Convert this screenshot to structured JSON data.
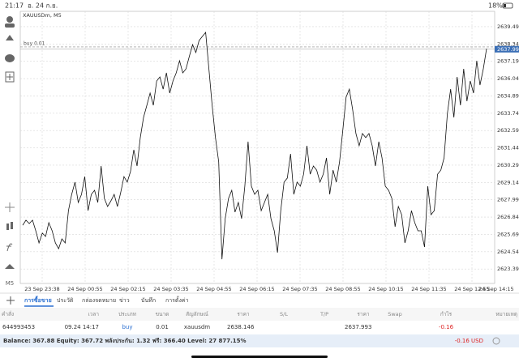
{
  "status_bar": {
    "time": "21:17",
    "date": "อ. 24 ก.ย.",
    "battery": "18%"
  },
  "chart": {
    "type": "line",
    "title": "XAUUSDm, M5",
    "color": "#111111",
    "order_line": {
      "label": "buy 0.01",
      "value": 2638.146
    },
    "current_price": 2637.993,
    "ylim": [
      2622.43,
      2640.51
    ],
    "yticks": [
      {
        "value": 2623.39,
        "label": "2623.390"
      },
      {
        "value": 2624.54,
        "label": "2624.540"
      },
      {
        "value": 2625.69,
        "label": "2625.690"
      },
      {
        "value": 2626.84,
        "label": "2626.840"
      },
      {
        "value": 2627.99,
        "label": "2627.990"
      },
      {
        "value": 2629.14,
        "label": "2629.140"
      },
      {
        "value": 2630.29,
        "label": "2630.290"
      },
      {
        "value": 2631.44,
        "label": "2631.440"
      },
      {
        "value": 2632.59,
        "label": "2632.590"
      },
      {
        "value": 2633.74,
        "label": "2633.740"
      },
      {
        "value": 2634.89,
        "label": "2634.890"
      },
      {
        "value": 2636.04,
        "label": "2636.040"
      },
      {
        "value": 2637.19,
        "label": "2637.190"
      },
      {
        "value": 2638.34,
        "label": "2638.340"
      },
      {
        "value": 2639.49,
        "label": "2639.490"
      }
    ],
    "categories": [
      "23 Sep 23:38",
      "24 Sep 00:55",
      "24 Sep 02:15",
      "24 Sep 03:35",
      "24 Sep 04:55",
      "24 Sep 06:15",
      "24 Sep 07:35",
      "24 Sep 08:55",
      "24 Sep 10:15",
      "24 Sep 11:35",
      "24 Sep 12:55",
      "24 Sep 14:15"
    ],
    "values": [
      2626.3,
      2626.63,
      2626.41,
      2626.63,
      2625.93,
      2625.12,
      2625.77,
      2625.55,
      2626.47,
      2625.93,
      2625.12,
      2624.74,
      2625.39,
      2625.12,
      2627.27,
      2628.35,
      2629.16,
      2627.81,
      2628.35,
      2629.53,
      2627.27,
      2628.35,
      2628.62,
      2627.81,
      2630.23,
      2628.08,
      2627.54,
      2627.92,
      2628.35,
      2627.54,
      2628.46,
      2629.53,
      2629.16,
      2629.86,
      2631.31,
      2630.23,
      2632.12,
      2633.46,
      2634.27,
      2635.08,
      2634.27,
      2635.88,
      2636.15,
      2635.34,
      2636.42,
      2635.08,
      2635.88,
      2636.42,
      2637.23,
      2636.42,
      2636.69,
      2637.5,
      2638.3,
      2637.77,
      2638.57,
      2638.84,
      2639.11,
      2636.69,
      2634.27,
      2632.12,
      2630.5,
      2624.04,
      2626.74,
      2628.08,
      2628.62,
      2627.17,
      2627.81,
      2626.74,
      2628.89,
      2631.85,
      2628.89,
      2628.35,
      2628.62,
      2627.27,
      2627.81,
      2628.35,
      2626.74,
      2625.93,
      2624.48,
      2627.27,
      2629.16,
      2629.43,
      2631.04,
      2628.35,
      2629.16,
      2628.89,
      2629.69,
      2631.58,
      2629.69,
      2630.23,
      2629.96,
      2629.16,
      2629.69,
      2630.77,
      2628.35,
      2629.96,
      2629.16,
      2630.5,
      2632.65,
      2634.81,
      2635.34,
      2634.0,
      2632.39,
      2631.58,
      2632.39,
      2632.12,
      2632.39,
      2631.58,
      2630.23,
      2631.85,
      2630.77,
      2628.89,
      2628.62,
      2628.08,
      2626.2,
      2627.54,
      2627.0,
      2625.12,
      2625.93,
      2627.27,
      2626.47,
      2625.93,
      2625.93,
      2624.85,
      2628.89,
      2627.0,
      2627.27,
      2629.69,
      2629.96,
      2630.77,
      2633.73,
      2635.34,
      2633.46,
      2636.15,
      2634.27,
      2636.69,
      2634.54,
      2635.88,
      2635.08,
      2637.23,
      2635.61,
      2636.69,
      2638.03
    ]
  },
  "toolbar": {
    "side_label": "M5"
  },
  "tabs": [
    "การซื้อขาย",
    "ประวัติ",
    "กล่องจดหมาย",
    "ข่าว",
    "บันทึก",
    "การตั้งค่า"
  ],
  "table": {
    "headers": [
      "คำสั่ง",
      "เวลา",
      "ประเภท",
      "ขนาด",
      "สัญลักษณ์",
      "ราคา",
      "S/L",
      "T/P",
      "ราคา",
      "Swap",
      "กำไร",
      "หมายเหตุ"
    ],
    "row": {
      "order": "644993453",
      "time": "09.24 14:17",
      "type": "buy",
      "volume": "0.01",
      "symbol": "xauusdm",
      "open_price": "2638.146",
      "price": "2637.993",
      "profit": "-0.16"
    }
  },
  "summary": {
    "text": "Balance: 367.88 Equity: 367.72 พลังประกัน: 1.32 ฟรี: 366.40 Level: 27 877.15%",
    "total": "-0.16 USD"
  }
}
